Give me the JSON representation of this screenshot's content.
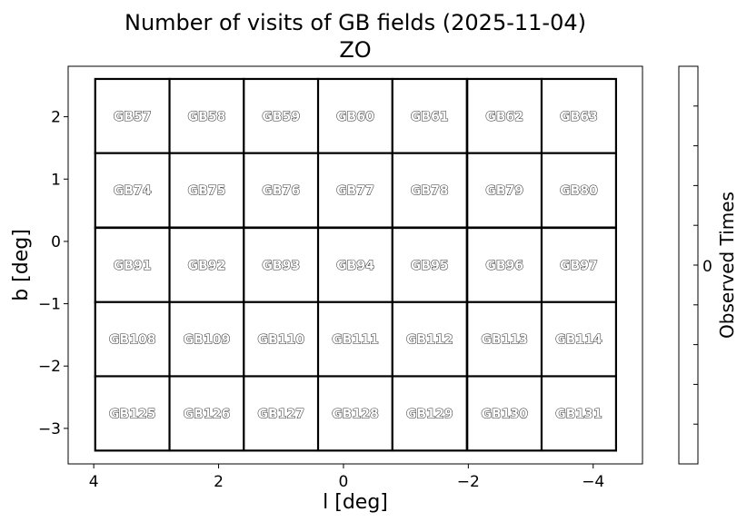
{
  "chart_data": {
    "type": "heatmap",
    "title": "Number of visits of GB fields (2025-11-04)",
    "subtitle": "ZO",
    "xlabel": "l [deg]",
    "ylabel": "b [deg]",
    "xlim": [
      4.41,
      -4.79
    ],
    "ylim": [
      -3.57,
      2.81
    ],
    "xticks": [
      4,
      2,
      0,
      -2,
      -4
    ],
    "xtick_labels": [
      "4",
      "2",
      "0",
      "−2",
      "−4"
    ],
    "yticks": [
      2,
      1,
      0,
      -1,
      -2,
      -3
    ],
    "ytick_labels": [
      "2",
      "1",
      "0",
      "−1",
      "−2",
      "−3"
    ],
    "grid": false,
    "field_size_deg": 1.193,
    "colorbar": {
      "label": "Observed Times",
      "ticks": [
        0
      ],
      "tick_labels": [
        "0"
      ],
      "min_color": "#ffffff"
    },
    "fields": [
      {
        "name": "GB57",
        "l": 3.38,
        "b": 2.01,
        "count": 0
      },
      {
        "name": "GB58",
        "l": 2.19,
        "b": 2.01,
        "count": 0
      },
      {
        "name": "GB59",
        "l": 1.0,
        "b": 2.01,
        "count": 0
      },
      {
        "name": "GB60",
        "l": -0.19,
        "b": 2.01,
        "count": 0
      },
      {
        "name": "GB61",
        "l": -1.38,
        "b": 2.01,
        "count": 0
      },
      {
        "name": "GB62",
        "l": -2.58,
        "b": 2.01,
        "count": 0
      },
      {
        "name": "GB63",
        "l": -3.77,
        "b": 2.01,
        "count": 0
      },
      {
        "name": "GB74",
        "l": 3.38,
        "b": 0.82,
        "count": 0
      },
      {
        "name": "GB75",
        "l": 2.19,
        "b": 0.82,
        "count": 0
      },
      {
        "name": "GB76",
        "l": 1.0,
        "b": 0.82,
        "count": 0
      },
      {
        "name": "GB77",
        "l": -0.19,
        "b": 0.82,
        "count": 0
      },
      {
        "name": "GB78",
        "l": -1.38,
        "b": 0.82,
        "count": 0
      },
      {
        "name": "GB79",
        "l": -2.58,
        "b": 0.82,
        "count": 0
      },
      {
        "name": "GB80",
        "l": -3.77,
        "b": 0.82,
        "count": 0
      },
      {
        "name": "GB91",
        "l": 3.38,
        "b": -0.38,
        "count": 0
      },
      {
        "name": "GB92",
        "l": 2.19,
        "b": -0.38,
        "count": 0
      },
      {
        "name": "GB93",
        "l": 1.0,
        "b": -0.38,
        "count": 0
      },
      {
        "name": "GB94",
        "l": -0.19,
        "b": -0.38,
        "count": 0
      },
      {
        "name": "GB95",
        "l": -1.38,
        "b": -0.38,
        "count": 0
      },
      {
        "name": "GB96",
        "l": -2.58,
        "b": -0.38,
        "count": 0
      },
      {
        "name": "GB97",
        "l": -3.77,
        "b": -0.38,
        "count": 0
      },
      {
        "name": "GB108",
        "l": 3.38,
        "b": -1.57,
        "count": 0
      },
      {
        "name": "GB109",
        "l": 2.19,
        "b": -1.57,
        "count": 0
      },
      {
        "name": "GB110",
        "l": 1.0,
        "b": -1.57,
        "count": 0
      },
      {
        "name": "GB111",
        "l": -0.19,
        "b": -1.57,
        "count": 0
      },
      {
        "name": "GB112",
        "l": -1.38,
        "b": -1.57,
        "count": 0
      },
      {
        "name": "GB113",
        "l": -2.58,
        "b": -1.57,
        "count": 0
      },
      {
        "name": "GB114",
        "l": -3.77,
        "b": -1.57,
        "count": 0
      },
      {
        "name": "GB125",
        "l": 3.38,
        "b": -2.76,
        "count": 0
      },
      {
        "name": "GB126",
        "l": 2.19,
        "b": -2.76,
        "count": 0
      },
      {
        "name": "GB127",
        "l": 1.0,
        "b": -2.76,
        "count": 0
      },
      {
        "name": "GB128",
        "l": -0.19,
        "b": -2.76,
        "count": 0
      },
      {
        "name": "GB129",
        "l": -1.38,
        "b": -2.76,
        "count": 0
      },
      {
        "name": "GB130",
        "l": -2.58,
        "b": -2.76,
        "count": 0
      },
      {
        "name": "GB131",
        "l": -3.77,
        "b": -2.76,
        "count": 0
      }
    ]
  }
}
